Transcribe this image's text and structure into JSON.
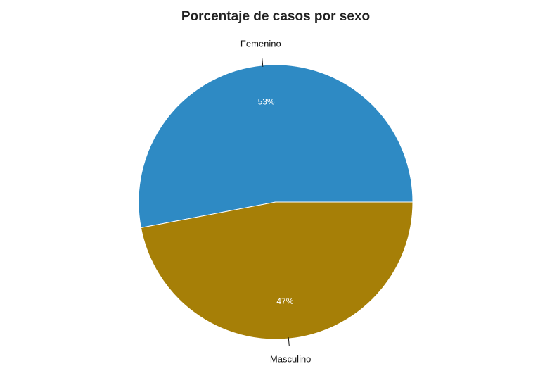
{
  "chart_data": {
    "type": "pie",
    "title": "Porcentaje de casos por sexo",
    "slices": [
      {
        "label": "Femenino",
        "value": 53,
        "percent_label": "53%",
        "color": "#2E8AC4"
      },
      {
        "label": "Masculino",
        "value": 47,
        "percent_label": "47%",
        "color": "#A67F07"
      }
    ],
    "start": "3 o'clock",
    "direction": "counter-clockwise",
    "label_placement": "outside with tick",
    "percent_placement": "inside",
    "slice_border_color": "#ffffff"
  }
}
